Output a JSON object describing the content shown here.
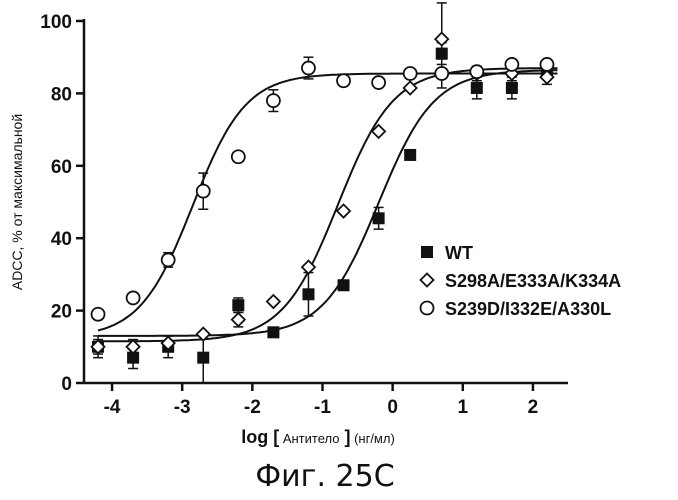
{
  "chart_data": {
    "type": "scatter",
    "xlabel_parts": [
      "log",
      "[",
      "Антитело",
      "]",
      "(нг/мл)"
    ],
    "ylabel": "ADCC, % от максимальной",
    "caption": "Фиг. 25С",
    "xlim": [
      -4.4,
      2.5
    ],
    "ylim": [
      0,
      100
    ],
    "xticks": [
      -4,
      -3,
      -2,
      -1,
      0,
      1,
      2
    ],
    "yticks": [
      0,
      20,
      40,
      60,
      80,
      100
    ],
    "legend_position": "center-right",
    "series": [
      {
        "name": "WT",
        "marker": "filled-square",
        "points": [
          {
            "x": -4.2,
            "y": 10,
            "err": 3
          },
          {
            "x": -3.7,
            "y": 7,
            "err": 3
          },
          {
            "x": -3.2,
            "y": 10,
            "err": 3
          },
          {
            "x": -2.7,
            "y": 7,
            "err": 7
          },
          {
            "x": -2.2,
            "y": 21.5,
            "err": 2
          },
          {
            "x": -1.7,
            "y": 14,
            "err": 0
          },
          {
            "x": -1.2,
            "y": 24.5,
            "err": 6
          },
          {
            "x": -0.7,
            "y": 27,
            "err": 0
          },
          {
            "x": -0.2,
            "y": 45.5,
            "err": 3
          },
          {
            "x": 0.25,
            "y": 63,
            "err": 0
          },
          {
            "x": 0.7,
            "y": 91,
            "err": 3
          },
          {
            "x": 1.2,
            "y": 81.5,
            "err": 3
          },
          {
            "x": 1.7,
            "y": 81.5,
            "err": 3
          },
          {
            "x": 2.2,
            "y": 86,
            "err": 2
          }
        ],
        "curve": {
          "bottom": 13,
          "top": 86.5,
          "logec50": -0.2,
          "hill": 1.1
        }
      },
      {
        "name": "S298A/E333A/K334A",
        "marker": "open-diamond",
        "points": [
          {
            "x": -4.2,
            "y": 10,
            "err": 2
          },
          {
            "x": -3.7,
            "y": 10,
            "err": 2
          },
          {
            "x": -3.2,
            "y": 11,
            "err": 2
          },
          {
            "x": -2.7,
            "y": 13.5,
            "err": 0
          },
          {
            "x": -2.2,
            "y": 17.5,
            "err": 2
          },
          {
            "x": -1.7,
            "y": 22.5,
            "err": 0
          },
          {
            "x": -1.2,
            "y": 32,
            "err": 0
          },
          {
            "x": -0.7,
            "y": 47.5,
            "err": 0
          },
          {
            "x": -0.2,
            "y": 69.5,
            "err": 0
          },
          {
            "x": 0.25,
            "y": 81.5,
            "err": 0
          },
          {
            "x": 0.7,
            "y": 95,
            "err": 10
          },
          {
            "x": 1.2,
            "y": 85.5,
            "err": 2
          },
          {
            "x": 1.7,
            "y": 85.5,
            "err": 2
          },
          {
            "x": 2.2,
            "y": 84.5,
            "err": 2
          }
        ],
        "curve": {
          "bottom": 11.5,
          "top": 87,
          "logec50": -0.78,
          "hill": 1.1
        }
      },
      {
        "name": "S239D/I332E/A330L",
        "marker": "open-circle",
        "points": [
          {
            "x": -4.2,
            "y": 19,
            "err": 0
          },
          {
            "x": -3.7,
            "y": 23.5,
            "err": 0
          },
          {
            "x": -3.2,
            "y": 34,
            "err": 2
          },
          {
            "x": -2.7,
            "y": 53,
            "err": 5
          },
          {
            "x": -2.2,
            "y": 62.5,
            "err": 0
          },
          {
            "x": -1.7,
            "y": 78,
            "err": 3
          },
          {
            "x": -1.2,
            "y": 87,
            "err": 3
          },
          {
            "x": -0.7,
            "y": 83.5,
            "err": 0
          },
          {
            "x": -0.2,
            "y": 83,
            "err": 0
          },
          {
            "x": 0.25,
            "y": 85.5,
            "err": 0
          },
          {
            "x": 0.7,
            "y": 85.5,
            "err": 4
          },
          {
            "x": 1.2,
            "y": 86,
            "err": 0
          },
          {
            "x": 1.7,
            "y": 88,
            "err": 0
          },
          {
            "x": 2.2,
            "y": 88,
            "err": 0
          }
        ],
        "curve": {
          "bottom": 12.5,
          "top": 85.5,
          "logec50": -2.85,
          "hill": 1.15
        }
      }
    ]
  }
}
